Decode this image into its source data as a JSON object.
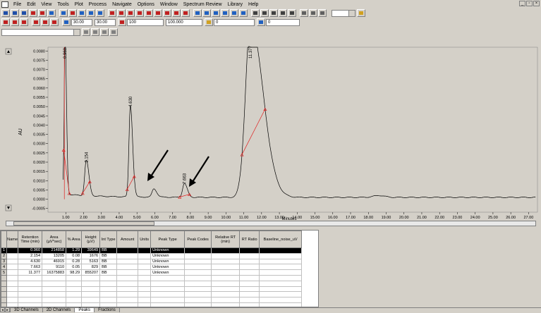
{
  "menu": [
    "File",
    "Edit",
    "View",
    "Tools",
    "Plot",
    "Process",
    "Navigate",
    "Options",
    "Window",
    "Spectrum Review",
    "Library",
    "Help"
  ],
  "toolbar": {
    "field1": "30.00",
    "field2": "30.00",
    "field3": "100",
    "field4": "100.000",
    "field5": "0",
    "field6": "0"
  },
  "chart_data": {
    "type": "line",
    "ylabel": "AU",
    "xlabel": "Minutes",
    "xlim": [
      0,
      27.5
    ],
    "ylim": [
      -0.0007,
      0.0082
    ],
    "yticks": [
      "0.0080",
      "0.0075",
      "0.0070",
      "0.0065",
      "0.0060",
      "0.0055",
      "0.0050",
      "0.0045",
      "0.0040",
      "0.0035",
      "0.0030",
      "0.0025",
      "0.0020",
      "0.0015",
      "0.0010",
      "0.0005",
      "0.0000",
      "-0.0005"
    ],
    "xticks": [
      "1.00",
      "2.00",
      "3.00",
      "4.00",
      "5.00",
      "6.00",
      "7.00",
      "8.00",
      "9.00",
      "10.00",
      "11.00",
      "12.00",
      "13.00",
      "14.00",
      "15.00",
      "16.00",
      "17.00",
      "18.00",
      "19.00",
      "20.00",
      "21.00",
      "22.00",
      "23.00",
      "24.00",
      "25.00",
      "26.00",
      "27.00"
    ],
    "peak_labels": [
      "0.960",
      "2.154",
      "4.630",
      "7.663",
      "11.377"
    ],
    "peaks": [
      {
        "rt": 0.96,
        "height": 0.0085,
        "width": 0.05
      },
      {
        "rt": 2.154,
        "height": 0.0019,
        "width": 0.09
      },
      {
        "rt": 4.63,
        "height": 0.0049,
        "width": 0.08
      },
      {
        "rt": 5.95,
        "height": 0.00045,
        "width": 0.1
      },
      {
        "rt": 7.663,
        "height": 0.00075,
        "width": 0.1
      },
      {
        "rt": 11.377,
        "height": 0.0095,
        "width": 0.28
      }
    ]
  },
  "table": {
    "headers": [
      "Name",
      "Retention Time (min)",
      "Area (µV*sec)",
      "% Area",
      "Height (µV)",
      "Int Type",
      "Amount",
      "Units",
      "Peak Type",
      "Peak Codes",
      "Relative RT (min)",
      "RT Ratio",
      "Baseline_noise_uV"
    ],
    "rows": [
      {
        "n": "1",
        "name": "",
        "rt": "0.960",
        "area": "214858",
        "pct": "1.29",
        "height": "39649",
        "int": "BB",
        "amount": "",
        "units": "",
        "ptype": "Unknown"
      },
      {
        "n": "2",
        "name": "",
        "rt": "2.154",
        "area": "13205",
        "pct": "0.08",
        "height": "1676",
        "int": "BB",
        "amount": "",
        "units": "",
        "ptype": "Unknown"
      },
      {
        "n": "3",
        "name": "",
        "rt": "4.630",
        "area": "46915",
        "pct": "0.28",
        "height": "5163",
        "int": "BB",
        "amount": "",
        "units": "",
        "ptype": "Unknown"
      },
      {
        "n": "4",
        "name": "",
        "rt": "7.663",
        "area": "9110",
        "pct": "0.05",
        "height": "829",
        "int": "BB",
        "amount": "",
        "units": "",
        "ptype": "Unknown"
      },
      {
        "n": "5",
        "name": "",
        "rt": "11.377",
        "area": "16375883",
        "pct": "98.29",
        "height": "855207",
        "int": "BB",
        "amount": "",
        "units": "",
        "ptype": "Unknown"
      }
    ]
  },
  "tabs": [
    "3D Channels",
    "2D Channels",
    "Peaks",
    "Fractions"
  ]
}
